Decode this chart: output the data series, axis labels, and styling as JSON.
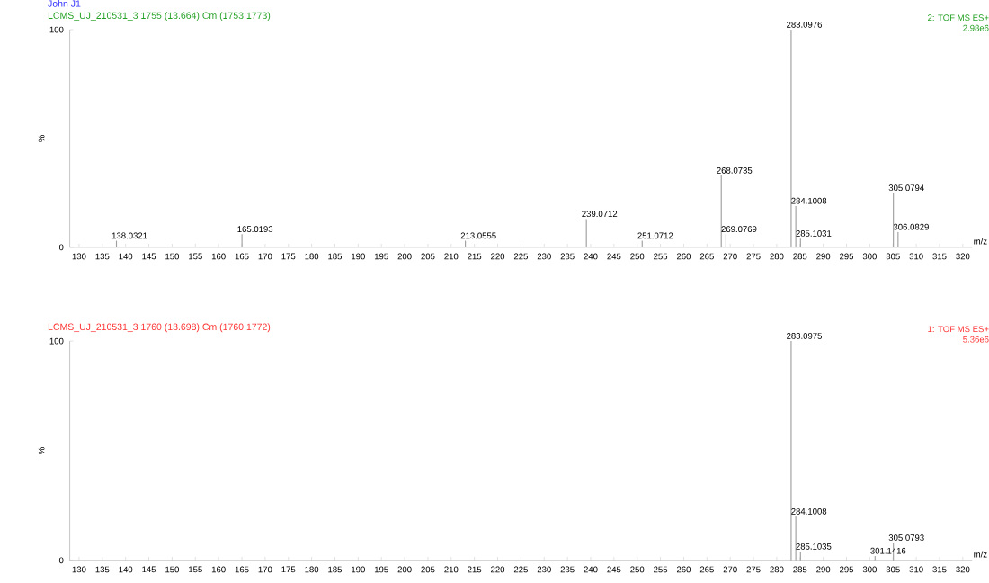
{
  "chart_data": [
    {
      "type": "bar",
      "title": "John J1",
      "subtitle": "LCMS_UJ_210531_3 1755 (13.664) Cm (1753:1773)",
      "xlabel": "m/z",
      "ylabel": "%",
      "color": "#a0a0a0",
      "x": [
        138.0321,
        165.0193,
        213.0555,
        239.0712,
        251.0712,
        268.0735,
        269.0769,
        283.0976,
        284.1008,
        285.1031,
        305.0794,
        306.0829
      ],
      "values": [
        3,
        6,
        3,
        13,
        3,
        33,
        6,
        100,
        19,
        4,
        25,
        7
      ],
      "xlim": [
        128,
        322
      ],
      "xticks": [
        130,
        135,
        140,
        145,
        150,
        155,
        160,
        165,
        170,
        175,
        180,
        185,
        190,
        195,
        200,
        205,
        210,
        215,
        220,
        225,
        230,
        235,
        240,
        245,
        250,
        255,
        260,
        265,
        270,
        275,
        280,
        285,
        290,
        295,
        300,
        305,
        310,
        315,
        320
      ],
      "ylim": [
        0,
        100
      ],
      "yticks": [
        0,
        100
      ],
      "annotations": [
        {
          "text": "138.0321",
          "x": 138.0321,
          "y": 3
        },
        {
          "text": "165.0193",
          "x": 165.0193,
          "y": 6
        },
        {
          "text": "213.0555",
          "x": 213.0555,
          "y": 3
        },
        {
          "text": "239.0712",
          "x": 239.0712,
          "y": 13
        },
        {
          "text": "251.0712",
          "x": 251.0712,
          "y": 3
        },
        {
          "text": "268.0735",
          "x": 268.0735,
          "y": 33
        },
        {
          "text": "269.0769",
          "x": 269.0769,
          "y": 6
        },
        {
          "text": "283.0976",
          "x": 283.0976,
          "y": 100
        },
        {
          "text": "284.1008",
          "x": 284.1008,
          "y": 19
        },
        {
          "text": "285.1031",
          "x": 285.1031,
          "y": 4
        },
        {
          "text": "305.0794",
          "x": 305.0794,
          "y": 25
        },
        {
          "text": "306.0829",
          "x": 306.0829,
          "y": 7
        },
        "2: TOF MS ES+",
        "2.98e6"
      ]
    },
    {
      "type": "bar",
      "subtitle": "LCMS_UJ_210531_3 1760 (13.698) Cm (1760:1772)",
      "xlabel": "m/z",
      "ylabel": "%",
      "color": "#a0a0a0",
      "x": [
        283.0975,
        284.1008,
        285.1035,
        301.1416,
        305.0793
      ],
      "values": [
        100,
        20,
        4,
        2,
        8
      ],
      "xlim": [
        128,
        322
      ],
      "xticks": [
        130,
        135,
        140,
        145,
        150,
        155,
        160,
        165,
        170,
        175,
        180,
        185,
        190,
        195,
        200,
        205,
        210,
        215,
        220,
        225,
        230,
        235,
        240,
        245,
        250,
        255,
        260,
        265,
        270,
        275,
        280,
        285,
        290,
        295,
        300,
        305,
        310,
        315,
        320
      ],
      "ylim": [
        0,
        100
      ],
      "yticks": [
        0,
        100
      ],
      "annotations": [
        {
          "text": "283.0975",
          "x": 283.0975,
          "y": 100
        },
        {
          "text": "284.1008",
          "x": 284.1008,
          "y": 20
        },
        {
          "text": "285.1035",
          "x": 285.1035,
          "y": 4
        },
        {
          "text": "301.1416",
          "x": 301.1416,
          "y": 2
        },
        {
          "text": "305.0793",
          "x": 305.0793,
          "y": 8
        },
        "1: TOF MS ES+",
        "5.36e6"
      ]
    }
  ]
}
